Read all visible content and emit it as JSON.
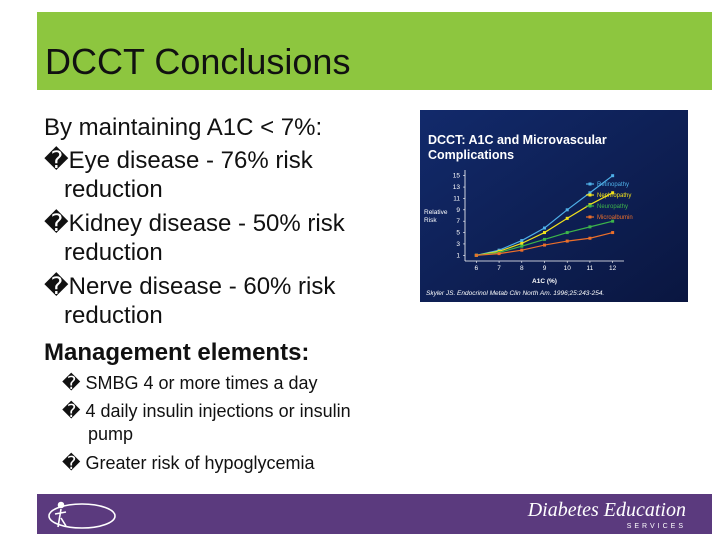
{
  "title": "DCCT Conclusions",
  "body": {
    "intro": "By maintaining A1C < 7%:",
    "bullets": [
      [
        "�Eye disease - 76% risk",
        "reduction"
      ],
      [
        "�Kidney disease - 50% risk",
        "reduction"
      ],
      [
        "�Nerve disease - 60% risk",
        "reduction"
      ]
    ],
    "management_heading": "Management elements:",
    "sub_bullets": [
      [
        "� SMBG 4 or more times a day"
      ],
      [
        "� 4 daily insulin injections or insulin",
        "pump"
      ],
      [
        "� Greater risk of hypoglycemia"
      ]
    ]
  },
  "chart_data": {
    "type": "line",
    "title": [
      "DCCT: A1C and Microvascular",
      "Complications"
    ],
    "y_label": [
      "Relative",
      "Risk"
    ],
    "x_label": "A1C (%)",
    "source": "Skyler JS. Endocrinol Metab Clin North Am. 1996;25:243-254.",
    "x": [
      6,
      7,
      8,
      9,
      10,
      11,
      12
    ],
    "xlim": [
      5.5,
      12.5
    ],
    "xticks": [
      6,
      7,
      8,
      9,
      10,
      11,
      12
    ],
    "ylim": [
      0,
      16
    ],
    "yticks": [
      1,
      3,
      5,
      7,
      9,
      11,
      13,
      15
    ],
    "grid": false,
    "legend": "upper right",
    "series": [
      {
        "name": "Retinopathy",
        "color": "#4fb0e8",
        "values": [
          1,
          1.9,
          3.6,
          5.8,
          9,
          12,
          15
        ]
      },
      {
        "name": "Nephropathy",
        "color": "#f2e21c",
        "values": [
          1,
          1.7,
          3.1,
          5,
          7.5,
          9.9,
          12
        ]
      },
      {
        "name": "Neuropathy",
        "color": "#3cb54a",
        "values": [
          1,
          1.5,
          2.6,
          3.8,
          5,
          6,
          7
        ]
      },
      {
        "name": "Microalbumin",
        "color": "#ec6f2a",
        "values": [
          1,
          1.3,
          1.9,
          2.8,
          3.5,
          4,
          5
        ]
      }
    ]
  },
  "footer": {
    "logo_text": "Diabetes Education",
    "logo_subtext": "SERVICES"
  }
}
